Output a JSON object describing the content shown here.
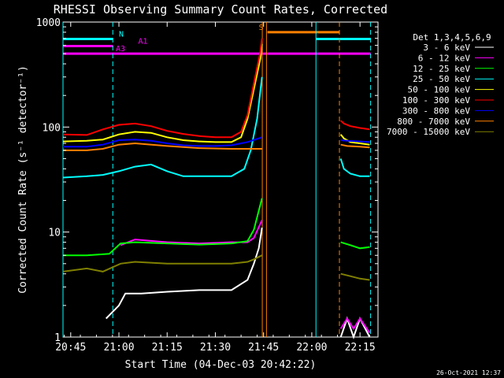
{
  "chart_data": {
    "type": "line",
    "title": "RHESSI Observing Summary Count Rates, Corrected",
    "xlabel": "Start Time (04-Dec-03 20:42:22)",
    "ylabel": "Corrected Count Rate (s⁻¹ detector⁻¹)",
    "ylog": true,
    "ylim": [
      1,
      1000
    ],
    "xlim_minutes": [
      -2.4,
      95.6
    ],
    "x_ticks": [
      {
        "minute": 0,
        "label": "20:45"
      },
      {
        "minute": 15,
        "label": "21:00"
      },
      {
        "minute": 30,
        "label": "21:15"
      },
      {
        "minute": 45,
        "label": "21:30"
      },
      {
        "minute": 60,
        "label": "21:45"
      },
      {
        "minute": 75,
        "label": "22:00"
      },
      {
        "minute": 90,
        "label": "22:15"
      }
    ],
    "y_ticks": [
      {
        "value": 1,
        "label": "1"
      },
      {
        "value": 10,
        "label": "10"
      },
      {
        "value": 100,
        "label": "100"
      },
      {
        "value": 1000,
        "label": "1000"
      }
    ],
    "legend_title": "Det 1,3,4,5,6,9",
    "legend_position": "right",
    "series": [
      {
        "name": "3 - 6 keV",
        "color": "#ffffff",
        "segments": [
          {
            "x": [
              11,
              15,
              17,
              22,
              30,
              40,
              50,
              55,
              57,
              58.5,
              59.5
            ],
            "y": [
              1.5,
              2.0,
              2.6,
              2.6,
              2.7,
              2.8,
              2.8,
              3.5,
              5.0,
              7.0,
              11
            ]
          },
          {
            "x": [
              84,
              86,
              88,
              90,
              93
            ],
            "y": [
              1,
              1.5,
              1,
              1.5,
              1
            ]
          }
        ]
      },
      {
        "name": "6 - 12 keV",
        "color": "#ff00ff",
        "segments": [
          {
            "x": [
              15.5,
              20,
              30,
              40,
              50,
              55,
              57,
              59.5
            ],
            "y": [
              7.5,
              8.5,
              8.0,
              7.8,
              8.0,
              8.0,
              8.8,
              13
            ]
          },
          {
            "x": [
              84,
              86,
              88,
              90,
              93
            ],
            "y": [
              1.2,
              1.5,
              1.2,
              1.5,
              1.1
            ]
          }
        ]
      },
      {
        "name": "12 - 25 keV",
        "color": "#00ff00",
        "segments": [
          {
            "x": [
              -2.4,
              5,
              12,
              15.5,
              20,
              30,
              40,
              50,
              55,
              57,
              59.5
            ],
            "y": [
              6.0,
              6.0,
              6.2,
              7.8,
              8.0,
              7.8,
              7.6,
              7.8,
              8.2,
              10.5,
              21
            ]
          },
          {
            "x": [
              84,
              87,
              90,
              93
            ],
            "y": [
              8.0,
              7.5,
              7.0,
              7.2
            ]
          }
        ]
      },
      {
        "name": "25 - 50 keV",
        "color": "#00ffff",
        "segments": [
          {
            "x": [
              -2.4,
              5,
              10,
              15,
              20,
              25,
              30,
              35,
              40,
              45,
              50,
              54,
              56,
              58,
              59.5
            ],
            "y": [
              33,
              34,
              35,
              38,
              42,
              44,
              38,
              34,
              34,
              34,
              34,
              40,
              60,
              120,
              300
            ]
          },
          {
            "x": [
              84,
              85,
              87,
              90,
              93
            ],
            "y": [
              50,
              40,
              36,
              34,
              34
            ]
          }
        ]
      },
      {
        "name": "50 - 100 keV",
        "color": "#ffff00",
        "segments": [
          {
            "x": [
              -2.4,
              5,
              10,
              15,
              20,
              25,
              30,
              35,
              40,
              45,
              50,
              53,
              55,
              57,
              59,
              59.5
            ],
            "y": [
              73,
              74,
              76,
              85,
              90,
              88,
              80,
              75,
              73,
              72,
              72,
              80,
              120,
              230,
              450,
              620
            ]
          },
          {
            "x": [
              84,
              85,
              87,
              90,
              93
            ],
            "y": [
              85,
              78,
              72,
              70,
              68
            ]
          }
        ]
      },
      {
        "name": "100 - 300 keV",
        "color": "#ff0000",
        "segments": [
          {
            "x": [
              -2.4,
              5,
              10,
              15,
              20,
              25,
              30,
              35,
              40,
              45,
              50,
              53,
              55,
              57,
              59,
              59.5
            ],
            "y": [
              85,
              84,
              95,
              105,
              108,
              102,
              92,
              86,
              82,
              80,
              80,
              90,
              130,
              260,
              520,
              700
            ]
          },
          {
            "x": [
              84,
              85,
              87,
              90,
              93
            ],
            "y": [
              115,
              108,
              102,
              98,
              95
            ]
          }
        ]
      },
      {
        "name": "300 - 800 keV",
        "color": "#0000ff",
        "segments": [
          {
            "x": [
              -2.4,
              5,
              10,
              15,
              20,
              25,
              30,
              35,
              40,
              45,
              50,
              55,
              59.5
            ],
            "y": [
              65,
              65,
              68,
              75,
              76,
              74,
              70,
              67,
              66,
              66,
              67,
              72,
              80
            ]
          },
          {
            "x": [
              84,
              86,
              90,
              93
            ],
            "y": [
              75,
              74,
              73,
              72
            ]
          }
        ]
      },
      {
        "name": "800 - 7000 keV",
        "color": "#ff8000",
        "segments": [
          {
            "x": [
              -2.4,
              5,
              10,
              15,
              20,
              30,
              40,
              50,
              55,
              59.5
            ],
            "y": [
              60,
              60,
              62,
              68,
              70,
              66,
              63,
              62,
              62,
              62
            ]
          },
          {
            "x": [
              84,
              86,
              90,
              93
            ],
            "y": [
              68,
              66,
              65,
              64
            ]
          }
        ]
      },
      {
        "name": "7000 - 15000 keV",
        "color": "#808000",
        "segments": [
          {
            "x": [
              -2.4,
              5,
              10,
              15.5,
              20,
              30,
              40,
              50,
              55,
              57,
              59.5
            ],
            "y": [
              4.2,
              4.5,
              4.2,
              5.0,
              5.2,
              5.0,
              5.0,
              5.0,
              5.2,
              5.5,
              6.0
            ]
          },
          {
            "x": [
              84,
              87,
              90,
              93
            ],
            "y": [
              4.0,
              3.8,
              3.6,
              3.5
            ]
          }
        ]
      }
    ],
    "vertical_lines": [
      {
        "x": -2.4,
        "color": "#00ffff",
        "dashed": false
      },
      {
        "x": 13.1,
        "color": "#00ffff",
        "dashed": true
      },
      {
        "x": 59.6,
        "color": "#ff8000",
        "dashed": false
      },
      {
        "x": 60.9,
        "color": "#ff8000",
        "dashed": false
      },
      {
        "x": 76.3,
        "color": "#00ffff",
        "dashed": false
      },
      {
        "x": 83.6,
        "color": "#ff8000",
        "dashed": true
      },
      {
        "x": 93.3,
        "color": "#00ffff",
        "dashed": true
      }
    ],
    "flag_bars": [
      {
        "x1": -2.4,
        "x2": 13.1,
        "y": 690,
        "color": "#00ffff",
        "label": "N",
        "label_x": 15
      },
      {
        "x1": 76.3,
        "x2": 93.3,
        "y": 690,
        "color": "#00ffff",
        "label": "",
        "label_x": 0
      },
      {
        "x1": -2.4,
        "x2": 93.3,
        "y": 500,
        "color": "#ff00ff",
        "label": "A3",
        "label_x": 14
      },
      {
        "x1": -2.4,
        "x2": 13.1,
        "y": 590,
        "color": "#ff00ff",
        "label": "A1",
        "label_x": 21
      },
      {
        "x1": 61.2,
        "x2": 83.6,
        "y": 800,
        "color": "#ff8000",
        "label": "S",
        "label_x": 58.5
      }
    ]
  },
  "timestamp": "26-Oct-2021 12:37"
}
